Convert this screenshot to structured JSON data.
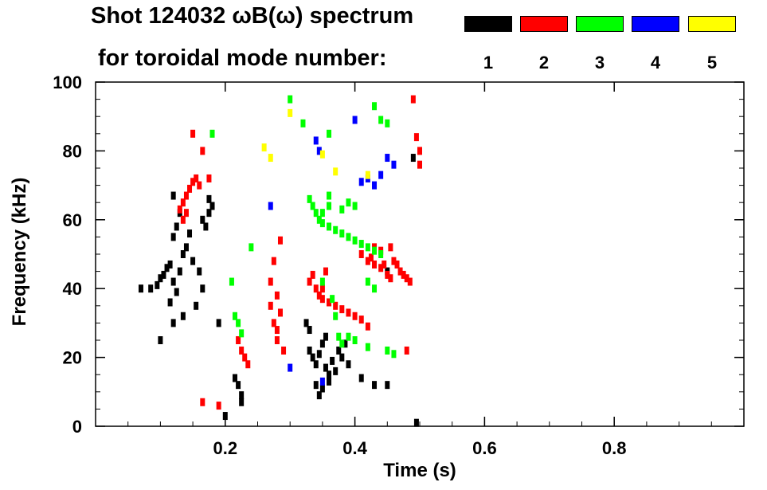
{
  "chart_data": {
    "type": "scatter",
    "title": "Shot 124032 ωB(ω) spectrum",
    "subtitle": "for toroidal mode number:",
    "xlabel": "Time (s)",
    "ylabel": "Frequency (kHz)",
    "xlim": [
      0.0,
      1.0
    ],
    "ylim": [
      0,
      100
    ],
    "x_ticks": [
      0.2,
      0.4,
      0.6,
      0.8
    ],
    "x_tick_labels": [
      "0.2",
      "0.4",
      "0.6",
      "0.8"
    ],
    "y_ticks": [
      0,
      20,
      40,
      60,
      80,
      100
    ],
    "y_tick_labels": [
      "0",
      "20",
      "40",
      "60",
      "80",
      "100"
    ],
    "grid": false,
    "legend_placement": "top-right",
    "series": [
      {
        "name": "1",
        "color": "#000000",
        "points": [
          [
            0.07,
            40
          ],
          [
            0.085,
            40
          ],
          [
            0.095,
            41
          ],
          [
            0.1,
            43
          ],
          [
            0.105,
            44
          ],
          [
            0.11,
            46
          ],
          [
            0.115,
            47
          ],
          [
            0.12,
            42
          ],
          [
            0.125,
            39
          ],
          [
            0.13,
            45
          ],
          [
            0.135,
            50
          ],
          [
            0.14,
            52
          ],
          [
            0.115,
            36
          ],
          [
            0.12,
            55
          ],
          [
            0.125,
            58
          ],
          [
            0.13,
            62
          ],
          [
            0.12,
            67
          ],
          [
            0.135,
            32
          ],
          [
            0.12,
            30
          ],
          [
            0.1,
            25
          ],
          [
            0.15,
            48
          ],
          [
            0.145,
            56
          ],
          [
            0.16,
            45
          ],
          [
            0.165,
            40
          ],
          [
            0.175,
            62
          ],
          [
            0.18,
            64
          ],
          [
            0.17,
            58
          ],
          [
            0.175,
            66
          ],
          [
            0.165,
            60
          ],
          [
            0.155,
            35
          ],
          [
            0.19,
            30
          ],
          [
            0.2,
            3
          ],
          [
            0.22,
            12
          ],
          [
            0.225,
            9
          ],
          [
            0.225,
            7
          ],
          [
            0.215,
            14
          ],
          [
            0.33,
            22
          ],
          [
            0.335,
            20
          ],
          [
            0.34,
            18
          ],
          [
            0.345,
            21
          ],
          [
            0.35,
            24
          ],
          [
            0.355,
            17
          ],
          [
            0.36,
            15
          ],
          [
            0.365,
            19
          ],
          [
            0.37,
            16
          ],
          [
            0.375,
            22
          ],
          [
            0.34,
            12
          ],
          [
            0.345,
            9
          ],
          [
            0.35,
            11
          ],
          [
            0.33,
            28
          ],
          [
            0.325,
            30
          ],
          [
            0.38,
            20
          ],
          [
            0.385,
            24
          ],
          [
            0.36,
            13
          ],
          [
            0.355,
            26
          ],
          [
            0.39,
            18
          ],
          [
            0.41,
            14
          ],
          [
            0.43,
            12
          ],
          [
            0.45,
            12
          ],
          [
            0.45,
            45
          ],
          [
            0.49,
            78
          ],
          [
            0.495,
            1
          ]
        ]
      },
      {
        "name": "2",
        "color": "#ff0000",
        "points": [
          [
            0.13,
            63
          ],
          [
            0.135,
            65
          ],
          [
            0.14,
            67
          ],
          [
            0.145,
            69
          ],
          [
            0.15,
            71
          ],
          [
            0.155,
            72
          ],
          [
            0.16,
            70
          ],
          [
            0.135,
            60
          ],
          [
            0.14,
            62
          ],
          [
            0.15,
            85
          ],
          [
            0.165,
            80
          ],
          [
            0.175,
            72
          ],
          [
            0.23,
            20
          ],
          [
            0.225,
            22
          ],
          [
            0.22,
            25
          ],
          [
            0.235,
            18
          ],
          [
            0.27,
            35
          ],
          [
            0.275,
            30
          ],
          [
            0.28,
            28
          ],
          [
            0.285,
            33
          ],
          [
            0.27,
            42
          ],
          [
            0.275,
            48
          ],
          [
            0.28,
            25
          ],
          [
            0.29,
            22
          ],
          [
            0.28,
            38
          ],
          [
            0.285,
            54
          ],
          [
            0.33,
            42
          ],
          [
            0.335,
            44
          ],
          [
            0.34,
            40
          ],
          [
            0.345,
            38
          ],
          [
            0.35,
            37
          ],
          [
            0.36,
            36
          ],
          [
            0.37,
            35
          ],
          [
            0.38,
            34
          ],
          [
            0.39,
            33
          ],
          [
            0.4,
            32
          ],
          [
            0.41,
            31
          ],
          [
            0.42,
            29
          ],
          [
            0.35,
            40
          ],
          [
            0.355,
            45
          ],
          [
            0.41,
            50
          ],
          [
            0.42,
            48
          ],
          [
            0.425,
            49
          ],
          [
            0.43,
            47
          ],
          [
            0.44,
            46
          ],
          [
            0.445,
            47
          ],
          [
            0.45,
            44
          ],
          [
            0.455,
            43
          ],
          [
            0.46,
            48
          ],
          [
            0.465,
            47
          ],
          [
            0.47,
            45
          ],
          [
            0.475,
            44
          ],
          [
            0.48,
            43
          ],
          [
            0.485,
            42
          ],
          [
            0.455,
            52
          ],
          [
            0.44,
            51
          ],
          [
            0.43,
            52
          ],
          [
            0.49,
            95
          ],
          [
            0.495,
            84
          ],
          [
            0.5,
            80
          ],
          [
            0.5,
            76
          ],
          [
            0.48,
            22
          ],
          [
            0.19,
            6
          ],
          [
            0.165,
            7
          ]
        ]
      },
      {
        "name": "3",
        "color": "#00ff00",
        "points": [
          [
            0.33,
            66
          ],
          [
            0.335,
            64
          ],
          [
            0.34,
            62
          ],
          [
            0.345,
            60
          ],
          [
            0.35,
            59
          ],
          [
            0.36,
            58
          ],
          [
            0.37,
            57
          ],
          [
            0.38,
            56
          ],
          [
            0.39,
            55
          ],
          [
            0.4,
            54
          ],
          [
            0.41,
            53
          ],
          [
            0.42,
            52
          ],
          [
            0.43,
            51
          ],
          [
            0.44,
            50
          ],
          [
            0.35,
            62
          ],
          [
            0.36,
            64
          ],
          [
            0.38,
            63
          ],
          [
            0.39,
            65
          ],
          [
            0.4,
            64
          ],
          [
            0.36,
            67
          ],
          [
            0.42,
            42
          ],
          [
            0.43,
            40
          ],
          [
            0.35,
            42
          ],
          [
            0.365,
            37
          ],
          [
            0.37,
            32
          ],
          [
            0.375,
            26
          ],
          [
            0.38,
            24
          ],
          [
            0.39,
            26
          ],
          [
            0.4,
            25
          ],
          [
            0.42,
            23
          ],
          [
            0.45,
            22
          ],
          [
            0.46,
            21
          ],
          [
            0.3,
            95
          ],
          [
            0.32,
            88
          ],
          [
            0.36,
            85
          ],
          [
            0.21,
            42
          ],
          [
            0.215,
            32
          ],
          [
            0.22,
            30
          ],
          [
            0.225,
            27
          ],
          [
            0.18,
            85
          ],
          [
            0.43,
            93
          ],
          [
            0.44,
            89
          ],
          [
            0.45,
            88
          ],
          [
            0.24,
            52
          ]
        ]
      },
      {
        "name": "4",
        "color": "#0000ff",
        "points": [
          [
            0.34,
            83
          ],
          [
            0.345,
            80
          ],
          [
            0.4,
            89
          ],
          [
            0.41,
            71
          ],
          [
            0.42,
            72
          ],
          [
            0.43,
            70
          ],
          [
            0.44,
            73
          ],
          [
            0.45,
            78
          ],
          [
            0.46,
            76
          ],
          [
            0.3,
            17
          ],
          [
            0.27,
            64
          ],
          [
            0.35,
            13
          ]
        ]
      },
      {
        "name": "5",
        "color": "#ffff00",
        "points": [
          [
            0.26,
            81
          ],
          [
            0.27,
            78
          ],
          [
            0.35,
            79
          ],
          [
            0.37,
            74
          ],
          [
            0.42,
            73
          ],
          [
            0.3,
            91
          ]
        ]
      }
    ]
  },
  "legend": {
    "entries": [
      {
        "label": "1",
        "color": "#000000"
      },
      {
        "label": "2",
        "color": "#ff0000"
      },
      {
        "label": "3",
        "color": "#00ff00"
      },
      {
        "label": "4",
        "color": "#0000ff"
      },
      {
        "label": "5",
        "color": "#ffff00"
      }
    ]
  }
}
